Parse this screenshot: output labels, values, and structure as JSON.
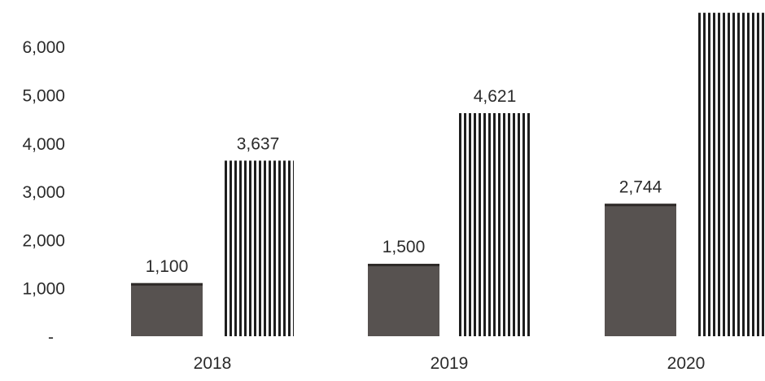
{
  "chart_data": {
    "type": "bar",
    "categories": [
      "2018",
      "2019",
      "2020"
    ],
    "series": [
      {
        "values": [
          1100,
          1500,
          2744
        ],
        "data_labels": [
          "1,100",
          "1,500",
          "2,744"
        ],
        "fill": "#575250",
        "pattern": "solid"
      },
      {
        "values": [
          3637,
          4621,
          6700
        ],
        "data_labels": [
          "3,637",
          "4,621",
          ""
        ],
        "fill": "#ffffff",
        "pattern": "vertical-stripes"
      }
    ],
    "y_ticks": [
      {
        "value": 0,
        "label": "-"
      },
      {
        "value": 1000,
        "label": "1,000"
      },
      {
        "value": 2000,
        "label": "2,000"
      },
      {
        "value": 3000,
        "label": "3,000"
      },
      {
        "value": 4000,
        "label": "4,000"
      },
      {
        "value": 5000,
        "label": "5,000"
      },
      {
        "value": 6000,
        "label": "6,000"
      }
    ],
    "ylim": [
      0,
      6700
    ],
    "title": "",
    "xlabel": "",
    "ylabel": "",
    "grid": false,
    "legend": "none",
    "colors": {
      "dark_bar": "#575250",
      "stripe": "#1e1e1e",
      "text": "#2b2b2b"
    }
  }
}
